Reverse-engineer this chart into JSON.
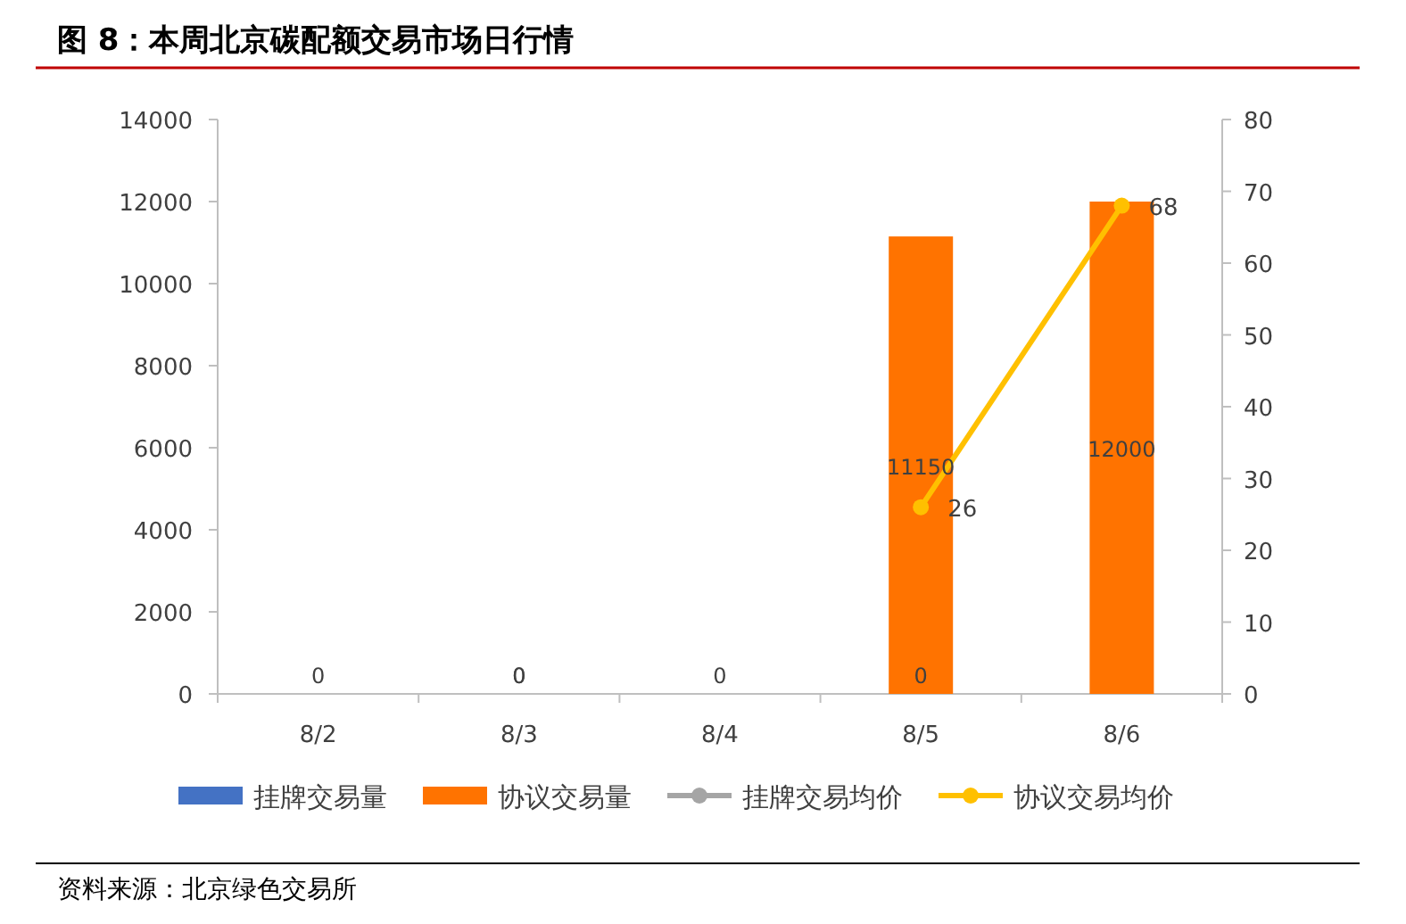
{
  "chart_data": {
    "type": "bar",
    "title": "图 8：本周北京碳配额交易市场日行情",
    "categories": [
      "8/2",
      "8/3",
      "8/4",
      "8/5",
      "8/6"
    ],
    "series": [
      {
        "name": "挂牌交易量",
        "color": "#4472c4",
        "values": [
          0,
          0,
          0,
          0,
          null
        ],
        "value_labels": [
          "0",
          "0",
          "0",
          "0",
          null
        ]
      },
      {
        "name": "协议交易量",
        "color": "#ff7300",
        "values": [
          null,
          0,
          null,
          11150,
          12000
        ],
        "value_labels": [
          null,
          "0",
          null,
          "11150",
          "12000"
        ]
      },
      {
        "name": "挂牌交易均价",
        "type": "line",
        "axis": "y2",
        "color": "#a5a5a5",
        "values": [
          null,
          null,
          null,
          null,
          null
        ]
      },
      {
        "name": "协议交易均价",
        "type": "line",
        "axis": "y2",
        "color": "#ffc000",
        "values": [
          null,
          null,
          null,
          26,
          68
        ],
        "value_labels": [
          null,
          null,
          null,
          "26",
          "68"
        ]
      }
    ],
    "ylim": [
      0,
      14000
    ],
    "yticks": [
      0,
      2000,
      4000,
      6000,
      8000,
      10000,
      12000,
      14000
    ],
    "y2lim": [
      0,
      80
    ],
    "y2ticks": [
      0,
      10,
      20,
      30,
      40,
      50,
      60,
      70,
      80
    ],
    "marker": "circle",
    "legend": "bottom",
    "grid": false,
    "annotations": [
      "资料来源：北京绿色交易所"
    ]
  }
}
